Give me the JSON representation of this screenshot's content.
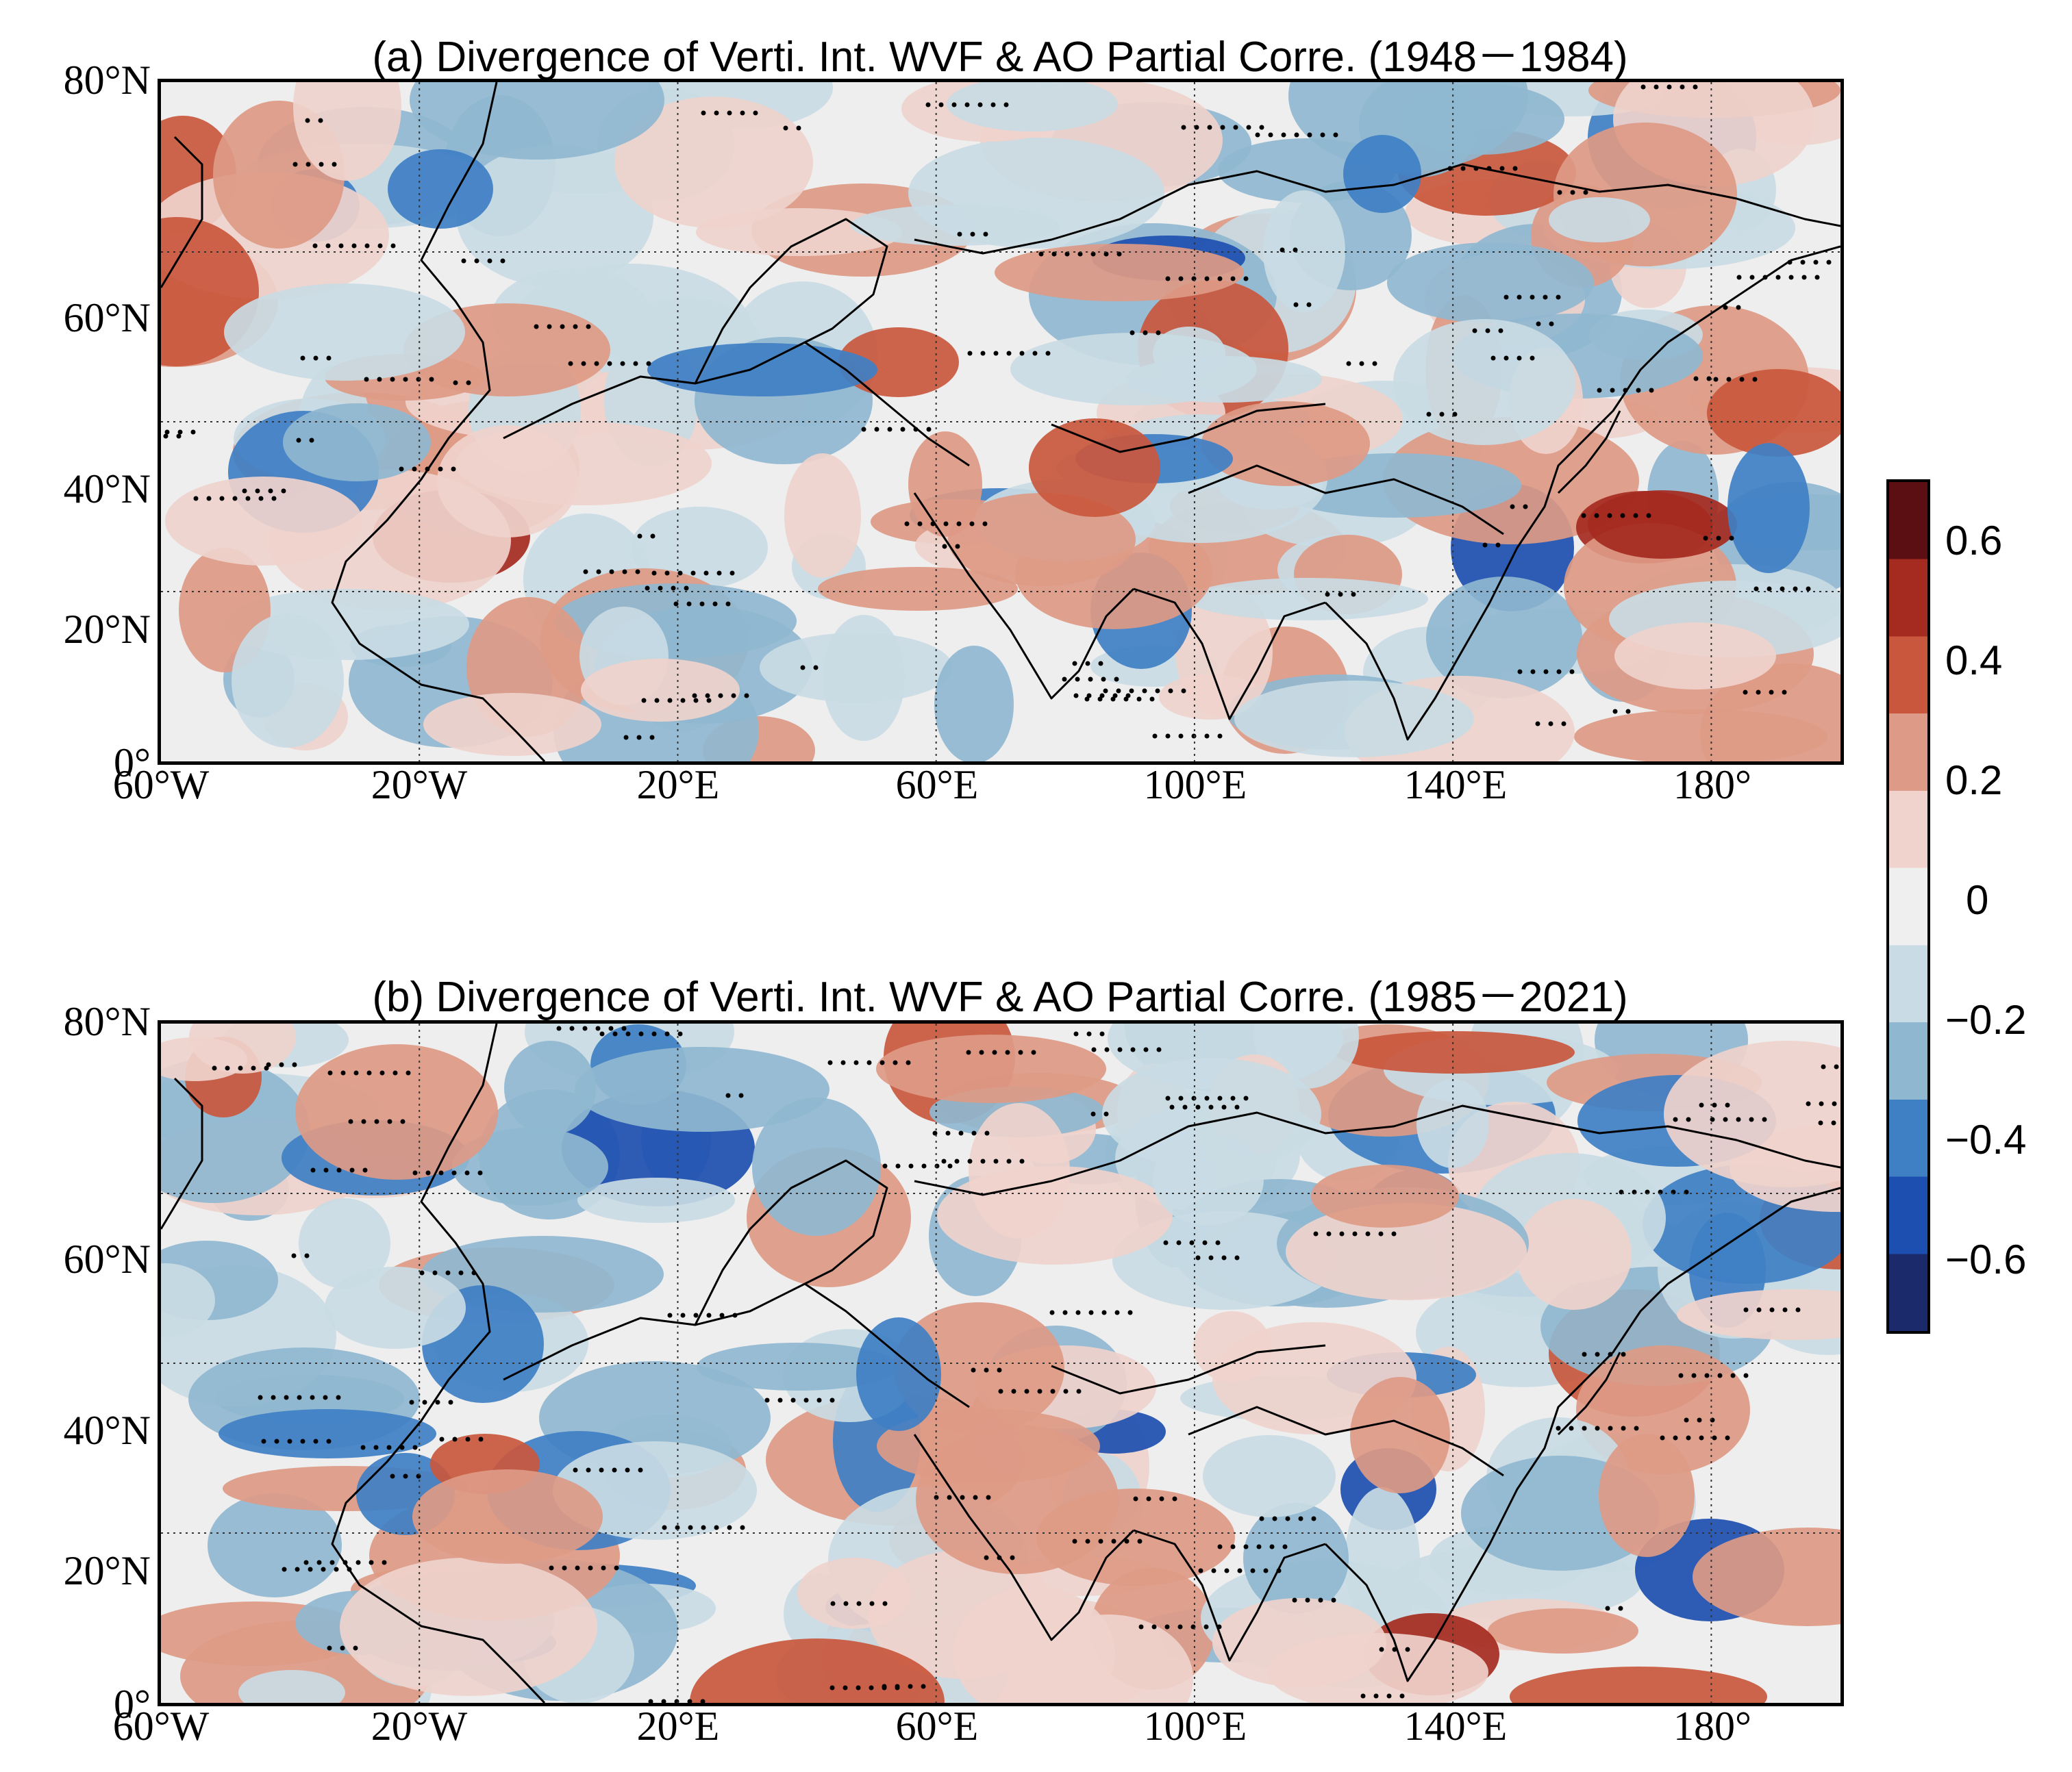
{
  "panels": [
    {
      "id": "a",
      "title": "(a) Divergence of Verti. Int. WVF & AO Partial Corre. (1948－1984)",
      "lat_labels": [
        "80°N",
        "60°N",
        "40°N",
        "20°N",
        "0°"
      ],
      "lon_labels": [
        "60°W",
        "20°W",
        "20°E",
        "60°E",
        "100°E",
        "140°E",
        "180°"
      ]
    },
    {
      "id": "b",
      "title": "(b) Divergence of Verti. Int. WVF & AO Partial Corre. (1985－2021)",
      "lat_labels": [
        "80°N",
        "60°N",
        "40°N",
        "20°N",
        "0°"
      ],
      "lon_labels": [
        "60°W",
        "20°W",
        "20°E",
        "60°E",
        "100°E",
        "140°E",
        "180°"
      ]
    }
  ],
  "colorbar": {
    "labels": [
      "0.6",
      "0.4",
      "0.2",
      "0",
      "−0.2",
      "−0.4",
      "−0.6"
    ],
    "values": [
      0.6,
      0.4,
      0.2,
      0,
      -0.2,
      -0.4,
      -0.6
    ],
    "min": -0.7,
    "max": 0.7,
    "colors": [
      "#1b2a6b",
      "#1d4fb0",
      "#3f7fc4",
      "#8fb7d0",
      "#c9dbe4",
      "#efefef",
      "#efd3cc",
      "#dd9a86",
      "#c9573d",
      "#a52a1f",
      "#5b0f13"
    ]
  },
  "map_extent": {
    "lon_min": -60,
    "lon_max": 200,
    "lat_min": 0,
    "lat_max": 80
  },
  "gridlines": {
    "lons": [
      -20,
      20,
      60,
      100,
      140,
      180
    ],
    "lats": [
      20,
      40,
      60
    ]
  }
}
